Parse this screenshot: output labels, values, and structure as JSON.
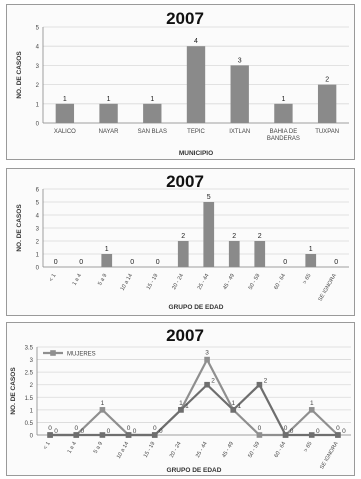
{
  "chart_data": [
    {
      "type": "bar",
      "title": "2007",
      "xlabel": "MUNICIPIO",
      "ylabel": "NO. DE CASOS",
      "ylim": [
        0,
        5
      ],
      "yticks": [
        0,
        1,
        2,
        3,
        4,
        5
      ],
      "categories": [
        "XALICO",
        "NAYAR",
        "SAN BLAS",
        "TEPIC",
        "IXTLAN",
        "BAHIA DE BANDERAS",
        "TUXPAN"
      ],
      "values": [
        1,
        1,
        1,
        4,
        3,
        1,
        2
      ],
      "bar_color": "#8a8a8a",
      "grid": true
    },
    {
      "type": "bar",
      "title": "2007",
      "xlabel": "GRUPO DE EDAD",
      "ylabel": "NO. DE CASOS",
      "ylim": [
        0,
        6
      ],
      "yticks": [
        0,
        1,
        2,
        3,
        4,
        5,
        6
      ],
      "categories": [
        "< 1",
        "1 a 4",
        "5 a 9",
        "10 a 14",
        "15 - 19",
        "20 - 24",
        "25 - 44",
        "45 - 49",
        "50 - 59",
        "60 - 64",
        "> 65",
        "SE IGNORA"
      ],
      "values": [
        0,
        0,
        1,
        0,
        0,
        2,
        5,
        2,
        2,
        0,
        1,
        0
      ],
      "bar_color": "#8a8a8a",
      "grid": true
    },
    {
      "type": "line",
      "title": "2007",
      "xlabel": "GRUPO DE EDAD",
      "ylabel": "NO. DE CASOS",
      "ylim": [
        0,
        3.5
      ],
      "yticks": [
        0,
        0.5,
        1,
        1.5,
        2,
        2.5,
        3,
        3.5
      ],
      "ytick_labels": [
        "0",
        "0.5",
        "1",
        "1.5",
        "2",
        "2.5",
        "3",
        "3.5"
      ],
      "categories": [
        "< 1",
        "1 a 4",
        "5 a 9",
        "10 a 14",
        "15 - 19",
        "20 - 24",
        "25 - 44",
        "45 - 49",
        "50 - 59",
        "60 - 64",
        "> 65",
        "SE IGNORA"
      ],
      "series": [
        {
          "name": "MUJERES",
          "values": [
            0,
            0,
            1,
            0,
            0,
            1,
            3,
            1,
            0,
            0,
            1,
            0
          ],
          "color": "#8f8f8f"
        },
        {
          "values": [
            0,
            0,
            0,
            0,
            0,
            1,
            2,
            1,
            2,
            0,
            0,
            0
          ],
          "color": "#6e6e6e"
        }
      ],
      "legend": "top-left",
      "grid": true
    }
  ]
}
